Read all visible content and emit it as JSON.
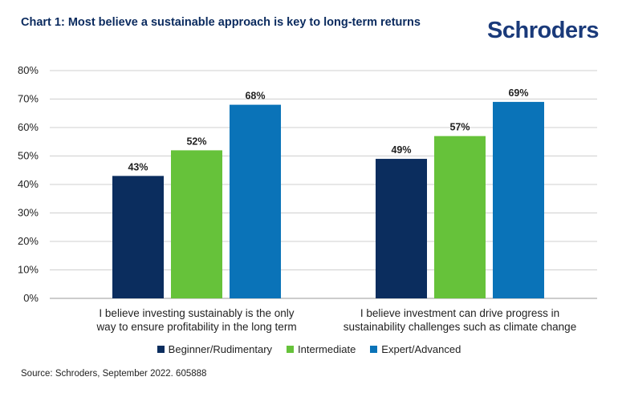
{
  "title": "Chart 1: Most believe a sustainable approach is key to long-term returns",
  "brand": "Schroders",
  "source": "Source: Schroders, September 2022. 605888",
  "colors": {
    "Beginner/Rudimentary": "#0b2d5e",
    "Intermediate": "#66c23a",
    "Expert/Advanced": "#0a73b8",
    "grid": "#cfcfcf",
    "title": "#0a2a5e"
  },
  "chart_data": {
    "type": "bar",
    "title": "Chart 1: Most believe a sustainable approach is key to long-term returns",
    "categories": [
      "I believe investing sustainably is the only way to ensure profitability in the long term",
      "I believe investment can drive progress in sustainability challenges such as climate change"
    ],
    "category_lines": [
      [
        "I believe investing sustainably is the only",
        "way to ensure profitability in the long term"
      ],
      [
        "I believe investment can drive progress in",
        "sustainability challenges such as climate change"
      ]
    ],
    "series": [
      {
        "name": "Beginner/Rudimentary",
        "values": [
          43,
          49
        ]
      },
      {
        "name": "Intermediate",
        "values": [
          52,
          57
        ]
      },
      {
        "name": "Expert/Advanced",
        "values": [
          68,
          69
        ]
      }
    ],
    "data_labels": [
      [
        "43%",
        "49%"
      ],
      [
        "52%",
        "57%"
      ],
      [
        "68%",
        "69%"
      ]
    ],
    "ylim": [
      0,
      80
    ],
    "yticks": [
      "0%",
      "10%",
      "20%",
      "30%",
      "40%",
      "50%",
      "60%",
      "70%",
      "80%"
    ],
    "unit": "%",
    "grid": true,
    "legend": "bottom-center"
  }
}
